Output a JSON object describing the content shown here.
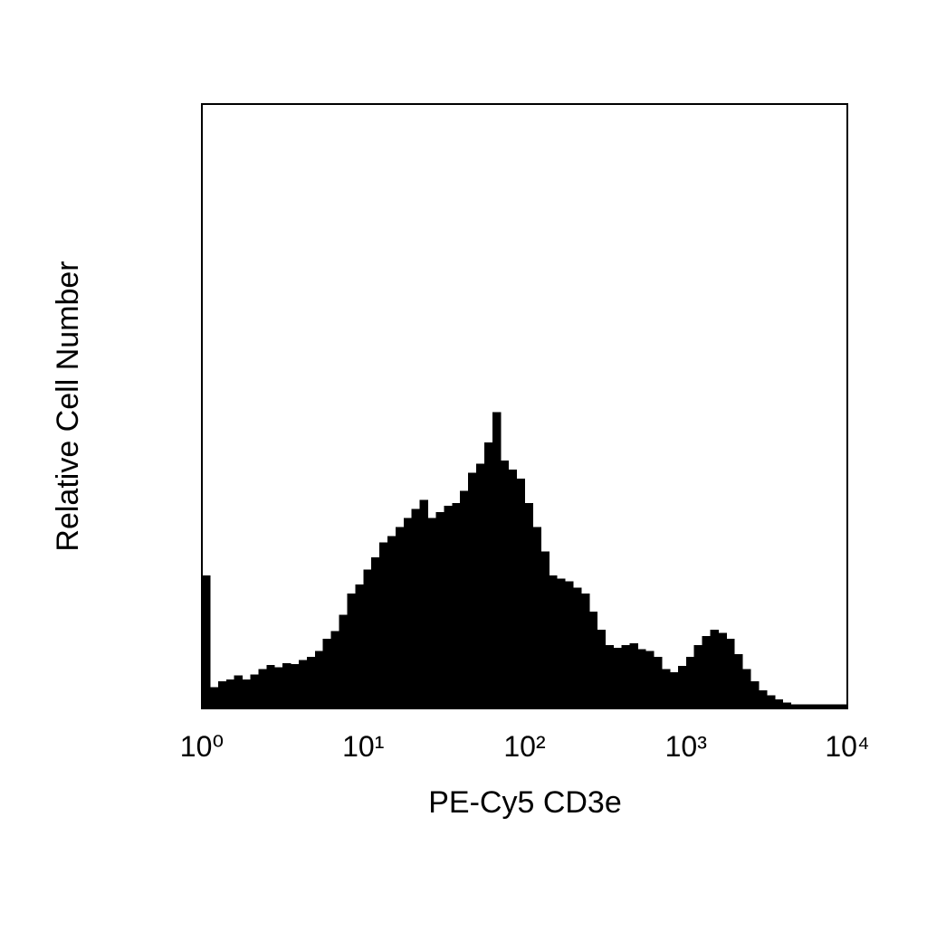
{
  "chart_data": {
    "type": "histogram",
    "x_label": "PE-Cy5 CD3e",
    "y_label": "Relative Cell Number",
    "xscale": "log",
    "xlim": [
      1,
      10000
    ],
    "ylim": [
      0,
      100
    ],
    "xticks": [
      {
        "value": 1,
        "label": "10⁰"
      },
      {
        "value": 10,
        "label": "10¹"
      },
      {
        "value": 100,
        "label": "10²"
      },
      {
        "value": 1000,
        "label": "10³"
      },
      {
        "value": 10000,
        "label": "10⁴"
      }
    ],
    "color": "#000000",
    "bins": [
      1,
      1.122,
      1.259,
      1.413,
      1.585,
      1.778,
      1.995,
      2.239,
      2.512,
      2.818,
      3.162,
      3.548,
      3.981,
      4.467,
      5.012,
      5.623,
      6.31,
      7.079,
      7.943,
      8.913,
      10,
      11.22,
      12.59,
      14.13,
      15.85,
      17.78,
      19.95,
      22.39,
      25.12,
      28.18,
      31.62,
      35.48,
      39.81,
      44.67,
      50.12,
      56.23,
      63.1,
      70.79,
      79.43,
      89.13,
      100,
      112.2,
      125.9,
      141.3,
      158.5,
      177.8,
      199.5,
      223.9,
      251.2,
      281.8,
      316.2,
      354.8,
      398.1,
      446.7,
      501.2,
      562.3,
      631,
      707.9,
      794.3,
      891.3,
      1000,
      1122,
      1259,
      1413,
      1585,
      1778,
      1995,
      2239,
      2512,
      2818,
      3162,
      3548,
      3981,
      4467,
      5012,
      5623,
      6310,
      7079,
      7943,
      8913,
      10000
    ],
    "values": [
      22,
      3.5,
      4.5,
      4.8,
      5.5,
      4.8,
      5.6,
      6.5,
      7.2,
      6.8,
      7.5,
      7.3,
      8,
      8.5,
      9.5,
      11.5,
      12.8,
      15.5,
      19,
      20.5,
      23,
      25,
      27.5,
      28.5,
      30,
      31.5,
      33,
      34.5,
      31.5,
      32.5,
      33.5,
      34,
      36,
      39,
      40.5,
      44,
      49,
      41,
      39.5,
      38,
      34,
      30,
      26,
      22,
      21.5,
      21,
      20,
      19,
      16,
      13,
      10.5,
      10,
      10.5,
      10.8,
      9.8,
      9.5,
      8.5,
      6.5,
      6,
      7,
      8.5,
      10.5,
      12,
      13,
      12.5,
      11.5,
      9,
      6.5,
      4.5,
      3,
      2.2,
      1.5,
      1,
      0.7,
      0.7,
      0.7,
      0.7,
      0.7,
      0.7,
      0.7
    ]
  }
}
